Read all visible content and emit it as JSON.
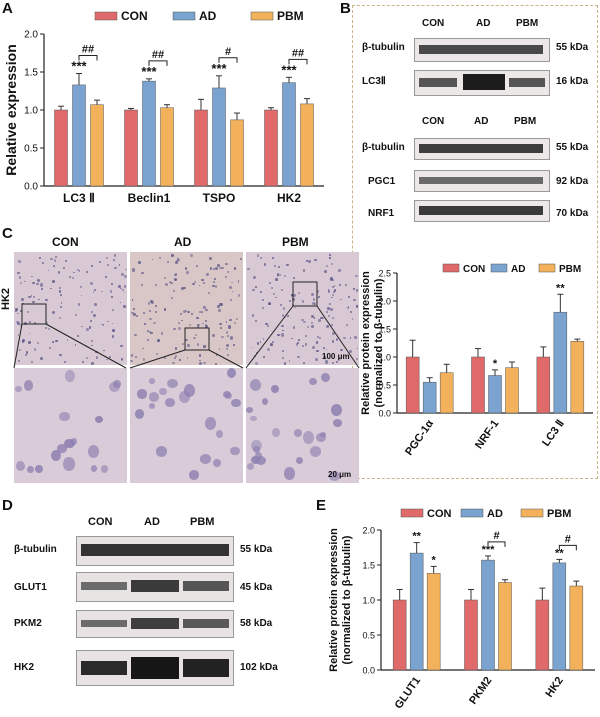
{
  "colors": {
    "con": "#e06a6a",
    "ad": "#7aa3d0",
    "pbm": "#f2b15a",
    "axis": "#222222",
    "frame": "#c9b48a"
  },
  "panels": {
    "A": "A",
    "B": "B",
    "C": "C",
    "D": "D",
    "E": "E"
  },
  "legend": {
    "con": "CON",
    "ad": "AD",
    "pbm": "PBM"
  },
  "blotB1": {
    "headers": [
      "CON",
      "AD",
      "PBM"
    ],
    "rows": [
      {
        "name": "β-tubulin",
        "kda": "55 kDa"
      },
      {
        "name": "LC3Ⅱ",
        "kda": "16 kDa"
      }
    ]
  },
  "blotB2": {
    "headers": [
      "CON",
      "AD",
      "PBM"
    ],
    "rows": [
      {
        "name": "β-tubulin",
        "kda": "55 kDa"
      },
      {
        "name": "PGC1",
        "kda": "92 kDa"
      },
      {
        "name": "NRF1",
        "kda": "70 kDa"
      }
    ]
  },
  "blotD": {
    "headers": [
      "CON",
      "AD",
      "PBM"
    ],
    "rows": [
      {
        "name": "β-tubulin",
        "kda": "55 kDa"
      },
      {
        "name": "GLUT1",
        "kda": "45 kDa"
      },
      {
        "name": "PKM2",
        "kda": "58 kDa"
      },
      {
        "name": "HK2",
        "kda": "102 kDa"
      }
    ]
  },
  "micro": {
    "headers": [
      "CON",
      "AD",
      "PBM"
    ],
    "row_label": "HK2",
    "scale_top": "100 μm",
    "scale_bottom": "20 μm"
  },
  "chart_data": [
    {
      "id": "A",
      "type": "bar",
      "ylabel": "Relative expression",
      "categories": [
        "LC3 Ⅱ",
        "Beclin1",
        "TSPO",
        "HK2"
      ],
      "ylim": [
        0,
        2.0
      ],
      "yticks": [
        "0.0",
        "0.5",
        "1.0",
        "1.5",
        "2.0"
      ],
      "series": [
        {
          "name": "CON",
          "values": [
            1.0,
            1.0,
            1.0,
            1.0
          ],
          "err": [
            0.05,
            0.02,
            0.14,
            0.03
          ]
        },
        {
          "name": "AD",
          "values": [
            1.33,
            1.38,
            1.29,
            1.36
          ],
          "err": [
            0.15,
            0.03,
            0.16,
            0.07
          ]
        },
        {
          "name": "PBM",
          "values": [
            1.07,
            1.03,
            0.87,
            1.08
          ],
          "err": [
            0.06,
            0.04,
            0.09,
            0.07
          ]
        }
      ],
      "stars": [
        "***",
        "***",
        "***",
        "***"
      ],
      "hashes": [
        "##",
        "##",
        "#",
        "##"
      ]
    },
    {
      "id": "C",
      "type": "bar",
      "ylabel": "Relative protein expression (normalized to β-tubulin)",
      "categories": [
        "PGC-1α",
        "NRF-1",
        "LC3 Ⅱ"
      ],
      "ylim": [
        0,
        2.5
      ],
      "yticks": [
        "0.0",
        "0.5",
        "1.0",
        "1.5",
        "2.0",
        "2.5"
      ],
      "series": [
        {
          "name": "CON",
          "values": [
            1.0,
            1.0,
            1.0
          ],
          "err": [
            0.3,
            0.15,
            0.18
          ]
        },
        {
          "name": "AD",
          "values": [
            0.55,
            0.67,
            1.8
          ],
          "err": [
            0.08,
            0.1,
            0.32
          ]
        },
        {
          "name": "PBM",
          "values": [
            0.72,
            0.81,
            1.28
          ],
          "err": [
            0.15,
            0.1,
            0.04
          ]
        }
      ],
      "stars": [
        "",
        "*",
        "**"
      ]
    },
    {
      "id": "E",
      "type": "bar",
      "ylabel": "Relative protein expression (normalized to β-tubulin)",
      "categories": [
        "GLUT1",
        "PKM2",
        "HK2"
      ],
      "ylim": [
        0,
        2.0
      ],
      "yticks": [
        "0.0",
        "0.5",
        "1.0",
        "1.5",
        "2.0"
      ],
      "series": [
        {
          "name": "CON",
          "values": [
            1.0,
            1.0,
            1.0
          ],
          "err": [
            0.15,
            0.15,
            0.17
          ]
        },
        {
          "name": "AD",
          "values": [
            1.67,
            1.57,
            1.53
          ],
          "err": [
            0.15,
            0.06,
            0.05
          ]
        },
        {
          "name": "PBM",
          "values": [
            1.38,
            1.25,
            1.2
          ],
          "err": [
            0.1,
            0.04,
            0.07
          ]
        }
      ],
      "stars": [
        "**",
        "***",
        "**"
      ],
      "pbm_stars": [
        "*",
        "",
        ""
      ],
      "hashes": [
        "",
        "#",
        "#"
      ]
    }
  ]
}
